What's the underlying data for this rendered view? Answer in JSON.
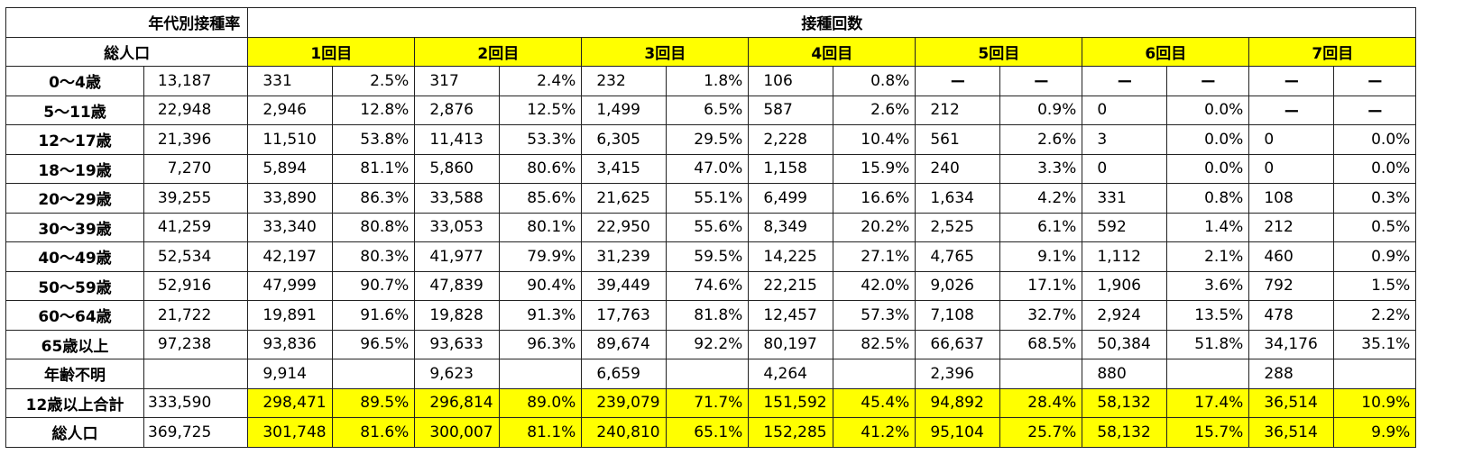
{
  "header": {
    "title": "年代別接種率",
    "population_label": "総人口",
    "doses_label": "接種回数",
    "dose_columns": [
      "1回目",
      "2回目",
      "3回目",
      "4回目",
      "5回目",
      "6回目",
      "7回目"
    ]
  },
  "rows": [
    {
      "age": "0〜4歳",
      "population": "13,187",
      "cells": [
        "331",
        "2.5%",
        "317",
        "2.4%",
        "232",
        "1.8%",
        "106",
        "0.8%",
        "ー",
        "ー",
        "ー",
        "ー",
        "ー",
        "ー"
      ]
    },
    {
      "age": "5〜11歳",
      "population": "22,948",
      "cells": [
        "2,946",
        "12.8%",
        "2,876",
        "12.5%",
        "1,499",
        "6.5%",
        "587",
        "2.6%",
        "212",
        "0.9%",
        "0",
        "0.0%",
        "ー",
        "ー"
      ]
    },
    {
      "age": "12〜17歳",
      "population": "21,396",
      "cells": [
        "11,510",
        "53.8%",
        "11,413",
        "53.3%",
        "6,305",
        "29.5%",
        "2,228",
        "10.4%",
        "561",
        "2.6%",
        "3",
        "0.0%",
        "0",
        "0.0%"
      ]
    },
    {
      "age": "18〜19歳",
      "population": "7,270",
      "cells": [
        "5,894",
        "81.1%",
        "5,860",
        "80.6%",
        "3,415",
        "47.0%",
        "1,158",
        "15.9%",
        "240",
        "3.3%",
        "0",
        "0.0%",
        "0",
        "0.0%"
      ]
    },
    {
      "age": "20〜29歳",
      "population": "39,255",
      "cells": [
        "33,890",
        "86.3%",
        "33,588",
        "85.6%",
        "21,625",
        "55.1%",
        "6,499",
        "16.6%",
        "1,634",
        "4.2%",
        "331",
        "0.8%",
        "108",
        "0.3%"
      ]
    },
    {
      "age": "30〜39歳",
      "population": "41,259",
      "cells": [
        "33,340",
        "80.8%",
        "33,053",
        "80.1%",
        "22,950",
        "55.6%",
        "8,349",
        "20.2%",
        "2,525",
        "6.1%",
        "592",
        "1.4%",
        "212",
        "0.5%"
      ]
    },
    {
      "age": "40〜49歳",
      "population": "52,534",
      "cells": [
        "42,197",
        "80.3%",
        "41,977",
        "79.9%",
        "31,239",
        "59.5%",
        "14,225",
        "27.1%",
        "4,765",
        "9.1%",
        "1,112",
        "2.1%",
        "460",
        "0.9%"
      ]
    },
    {
      "age": "50〜59歳",
      "population": "52,916",
      "cells": [
        "47,999",
        "90.7%",
        "47,839",
        "90.4%",
        "39,449",
        "74.6%",
        "22,215",
        "42.0%",
        "9,026",
        "17.1%",
        "1,906",
        "3.6%",
        "792",
        "1.5%"
      ]
    },
    {
      "age": "60〜64歳",
      "population": "21,722",
      "cells": [
        "19,891",
        "91.6%",
        "19,828",
        "91.3%",
        "17,763",
        "81.8%",
        "12,457",
        "57.3%",
        "7,108",
        "32.7%",
        "2,924",
        "13.5%",
        "478",
        "2.2%"
      ]
    },
    {
      "age": "65歳以上",
      "population": "97,238",
      "cells": [
        "93,836",
        "96.5%",
        "93,633",
        "96.3%",
        "89,674",
        "92.2%",
        "80,197",
        "82.5%",
        "66,637",
        "68.5%",
        "50,384",
        "51.8%",
        "34,176",
        "35.1%"
      ]
    },
    {
      "age": "年齢不明",
      "population": "",
      "cells": [
        "9,914",
        "",
        "9,623",
        "",
        "6,659",
        "",
        "4,264",
        "",
        "2,396",
        "",
        "880",
        "",
        "288",
        ""
      ]
    }
  ],
  "totals": [
    {
      "label": "12歳以上合計",
      "population": "333,590",
      "cells": [
        "298,471",
        "89.5%",
        "296,814",
        "89.0%",
        "239,079",
        "71.7%",
        "151,592",
        "45.4%",
        "94,892",
        "28.4%",
        "58,132",
        "17.4%",
        "36,514",
        "10.9%"
      ]
    },
    {
      "label": "総人口",
      "population": "369,725",
      "cells": [
        "301,748",
        "81.6%",
        "300,007",
        "81.1%",
        "240,810",
        "65.1%",
        "152,285",
        "41.2%",
        "95,104",
        "25.7%",
        "58,132",
        "15.7%",
        "36,514",
        "9.9%"
      ]
    }
  ],
  "colors": {
    "highlight": "#ffff00",
    "border": "#222222"
  }
}
